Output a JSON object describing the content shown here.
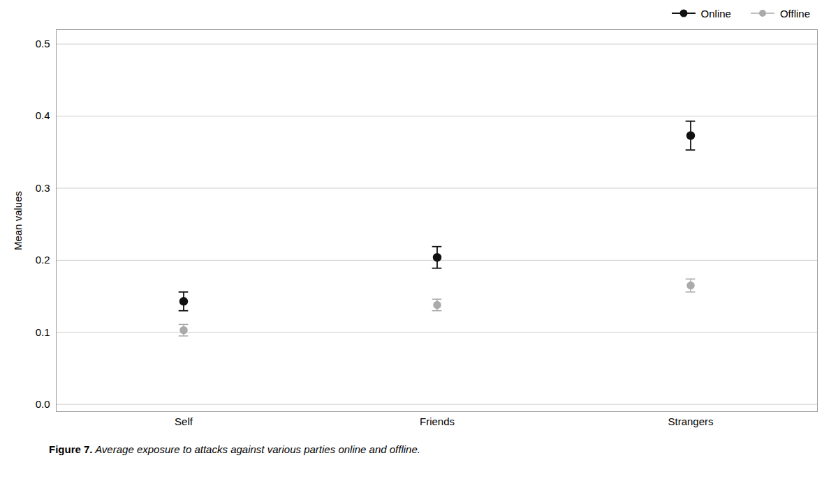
{
  "chart_data": {
    "type": "scatter",
    "ylabel": "Mean values",
    "caption": [
      "Figure 7.",
      " Average exposure to attacks against various parties online and offline."
    ],
    "categories": [
      "Self",
      "Friends",
      "Strangers"
    ],
    "series": [
      {
        "name": "Online",
        "color": "#111111",
        "marker": "circle",
        "values": [
          0.143,
          0.204,
          0.373
        ],
        "ci_lower": [
          0.013,
          0.015,
          0.02
        ],
        "ci_upper": [
          0.013,
          0.015,
          0.02
        ]
      },
      {
        "name": "Offline",
        "color": "#aaaaaa",
        "marker": "circle",
        "values": [
          0.103,
          0.138,
          0.165
        ],
        "ci_lower": [
          0.008,
          0.008,
          0.009
        ],
        "ci_upper": [
          0.008,
          0.008,
          0.009
        ]
      }
    ],
    "ylim": [
      -0.01,
      0.52
    ],
    "yticks": [
      {
        "value": 0.0,
        "label": "0.0"
      },
      0.1,
      0.2,
      0.3,
      0.4,
      0.5
    ],
    "grid": true,
    "legend": "upper right"
  }
}
